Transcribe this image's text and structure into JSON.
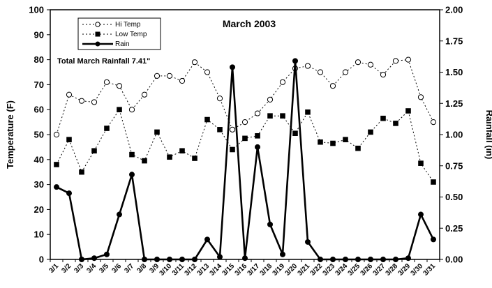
{
  "chart_data": {
    "type": "line",
    "title": "March 2003",
    "annotation": "Total March Rainfall 7.41\"",
    "ylabel": "Temperature (F)",
    "y2label": "Rainfall (in)",
    "ylim": [
      0,
      100
    ],
    "y2lim": [
      0,
      2
    ],
    "yticks": [
      "0",
      "10",
      "20",
      "30",
      "40",
      "50",
      "60",
      "70",
      "80",
      "90",
      "100"
    ],
    "y2ticks": [
      "0.00",
      "0.25",
      "0.50",
      "0.75",
      "1.00",
      "1.25",
      "1.50",
      "1.75",
      "2.00"
    ],
    "legend_position": "top-left",
    "categories": [
      "3/1",
      "3/2",
      "3/3",
      "3/4",
      "3/5",
      "3/6",
      "3/7",
      "3/8",
      "3/9",
      "3/10",
      "3/11",
      "3/12",
      "3/13",
      "3/14",
      "3/15",
      "3/16",
      "3/17",
      "3/18",
      "3/19",
      "3/20",
      "3/21",
      "3/22",
      "3/23",
      "3/24",
      "3/25",
      "3/26",
      "3/27",
      "3/28",
      "3/29",
      "3/30",
      "3/31"
    ],
    "series": [
      {
        "name": "Hi Temp",
        "axis": "left",
        "style": "dotted-open-circle",
        "values": [
          50,
          66,
          63.5,
          63,
          71,
          69.5,
          60,
          66,
          73.5,
          73.5,
          71.5,
          79,
          75,
          64.5,
          52,
          55,
          58.5,
          64,
          71,
          76.5,
          77.5,
          75,
          69.5,
          75,
          79,
          78,
          74,
          79.5,
          80,
          65,
          55
        ]
      },
      {
        "name": "Low Temp",
        "axis": "left",
        "style": "dotted-filled-square",
        "values": [
          38,
          48,
          35,
          43.5,
          52.5,
          60,
          42,
          39.5,
          51,
          41,
          43.5,
          40.5,
          56,
          52,
          44,
          48.5,
          49.5,
          57.5,
          57.5,
          50.5,
          59,
          47,
          46.5,
          48,
          44.5,
          51,
          56.5,
          54.5,
          59.5,
          38.5,
          31
        ]
      },
      {
        "name": "Rain",
        "axis": "right",
        "style": "solid-filled-circle",
        "values": [
          0.58,
          0.53,
          0,
          0.01,
          0.04,
          0.36,
          0.68,
          0,
          0,
          0,
          0,
          0,
          0.16,
          0.02,
          1.54,
          0.01,
          0.9,
          0.28,
          0.04,
          1.59,
          0.14,
          0,
          0,
          0,
          0,
          0,
          0,
          0,
          0.01,
          0.36,
          0.16
        ]
      }
    ]
  }
}
